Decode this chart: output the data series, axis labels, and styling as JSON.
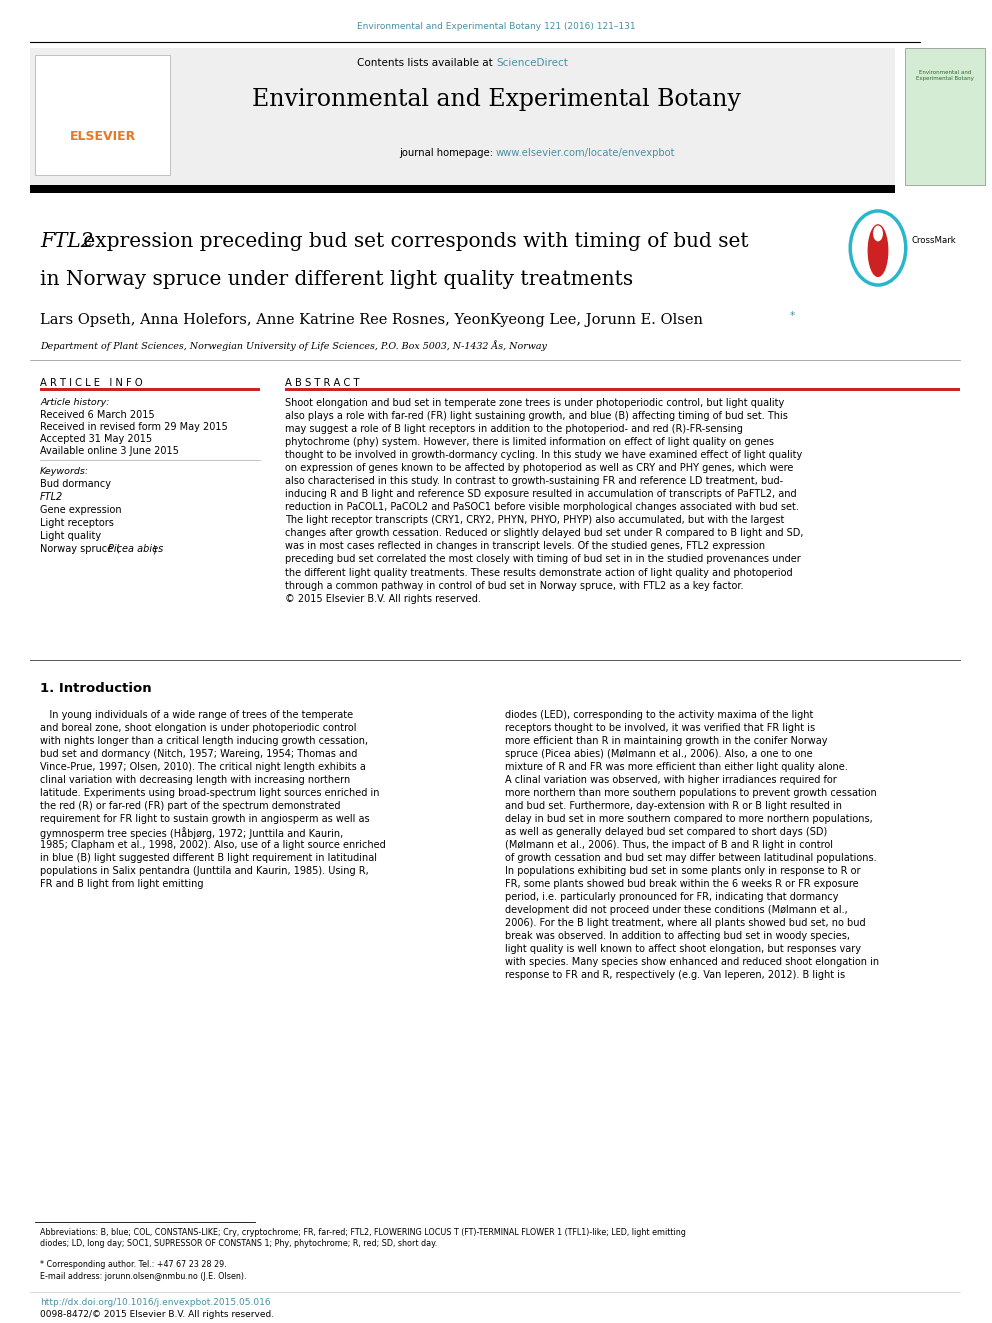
{
  "page_width": 9.92,
  "page_height": 13.23,
  "background_color": "#ffffff",
  "journal_ref_color": "#4a90a4",
  "journal_ref": "Environmental and Experimental Botany 121 (2016) 121–131",
  "header_bg_color": "#efefef",
  "contents_text": "Contents lists available at ",
  "sciencedirect_text": "ScienceDirect",
  "sciencedirect_color": "#4a90a4",
  "journal_title": "Environmental and Experimental Botany",
  "journal_homepage_label": "journal homepage: ",
  "journal_url": "www.elsevier.com/locate/envexpbot",
  "journal_url_color": "#4a90a4",
  "article_title_italic": "FTL2",
  "article_title_rest": " expression preceding bud set corresponds with timing of bud set",
  "article_title_line2": "in Norway spruce under different light quality treatments",
  "authors": "Lars Opseth, Anna Holefors, Anne Katrine Ree Rosnes, YeonKyeong Lee, Jorunn E. Olsen",
  "author_star_color": "#4a90a4",
  "affiliation": "Department of Plant Sciences, Norwegian University of Life Sciences, P.O. Box 5003, N-1432 Ås, Norway",
  "article_info_header": "A R T I C L E   I N F O",
  "abstract_header": "A B S T R A C T",
  "article_history_label": "Article history:",
  "received": "Received 6 March 2015",
  "received_revised": "Received in revised form 29 May 2015",
  "accepted": "Accepted 31 May 2015",
  "available": "Available online 3 June 2015",
  "keywords_label": "Keywords:",
  "keywords": [
    "Bud dormancy",
    "FTL2",
    "Gene expression",
    "Light receptors",
    "Light quality",
    "Norway spruce (Picea abies)"
  ],
  "abstract_text": "Shoot elongation and bud set in temperate zone trees is under photoperiodic control, but light quality\nalso plays a role with far-red (FR) light sustaining growth, and blue (B) affecting timing of bud set. This\nmay suggest a role of B light receptors in addition to the photoperiod- and red (R)-FR-sensing\nphytochrome (phy) system. However, there is limited information on effect of light quality on genes\nthought to be involved in growth-dormancy cycling. In this study we have examined effect of light quality\non expression of genes known to be affected by photoperiod as well as CRY and PHY genes, which were\nalso characterised in this study. In contrast to growth-sustaining FR and reference LD treatment, bud-\ninducing R and B light and reference SD exposure resulted in accumulation of transcripts of PaFTL2, and\nreduction in PaCOL1, PaCOL2 and PaSOC1 before visible morphological changes associated with bud set.\nThe light receptor transcripts (CRY1, CRY2, PHYN, PHYO, PHYP) also accumulated, but with the largest\nchanges after growth cessation. Reduced or slightly delayed bud set under R compared to B light and SD,\nwas in most cases reflected in changes in transcript levels. Of the studied genes, FTL2 expression\npreceding bud set correlated the most closely with timing of bud set in in the studied provenances under\nthe different light quality treatments. These results demonstrate action of light quality and photoperiod\nthrough a common pathway in control of bud set in Norway spruce, with FTL2 as a key factor.\n© 2015 Elsevier B.V. All rights reserved.",
  "intro_header": "1. Introduction",
  "intro_col1_lines": [
    "   In young individuals of a wide range of trees of the temperate",
    "and boreal zone, shoot elongation is under photoperiodic control",
    "with nights longer than a critical length inducing growth cessation,",
    "bud set and dormancy (Nitch, 1957; Wareing, 1954; Thomas and",
    "Vince-Prue, 1997; Olsen, 2010). The critical night length exhibits a",
    "clinal variation with decreasing length with increasing northern",
    "latitude. Experiments using broad-spectrum light sources enriched in",
    "the red (R) or far-red (FR) part of the spectrum demonstrated",
    "requirement for FR light to sustain growth in angiosperm as well as",
    "gymnosperm tree species (Håbjørg, 1972; Junttila and Kaurin,",
    "1985; Clapham et al., 1998, 2002). Also, use of a light source enriched",
    "in blue (B) light suggested different B light requirement in latitudinal",
    "populations in Salix pentandra (Junttila and Kaurin, 1985). Using R,",
    "FR and B light from light emitting"
  ],
  "intro_col2_lines": [
    "diodes (LED), corresponding to the activity maxima of the light",
    "receptors thought to be involved, it was verified that FR light is",
    "more efficient than R in maintaining growth in the conifer Norway",
    "spruce (Picea abies) (Mølmann et al., 2006). Also, a one to one",
    "mixture of R and FR was more efficient than either light quality alone.",
    "A clinal variation was observed, with higher irradiances required for",
    "more northern than more southern populations to prevent growth cessation",
    "and bud set. Furthermore, day-extension with R or B light resulted in",
    "delay in bud set in more southern compared to more northern populations,",
    "as well as generally delayed bud set compared to short days (SD)",
    "(Mølmann et al., 2006). Thus, the impact of B and R light in control",
    "of growth cessation and bud set may differ between latitudinal populations.",
    "In populations exhibiting bud set in some plants only in response to R or",
    "FR, some plants showed bud break within the 6 weeks R or FR exposure",
    "period, i.e. particularly pronounced for FR, indicating that dormancy",
    "development did not proceed under these conditions (Mølmann et al.,",
    "2006). For the B light treatment, where all plants showed bud set, no bud",
    "break was observed. In addition to affecting bud set in woody species,",
    "light quality is well known to affect shoot elongation, but responses vary",
    "with species. Many species show enhanced and reduced shoot elongation in",
    "response to FR and R, respectively (e.g. Van Ieperen, 2012). B light is"
  ],
  "footnote_abbrev": "Abbreviations: B, blue; COL, CONSTANS-LIKE; Cry, cryptochrome; FR, far-red; FTL2, FLOWERING LOCUS T (FT)-TERMINAL FLOWER 1 (TFL1)-like; LED, light emitting\ndiodes; LD, long day; SOC1, SUPRESSOR OF CONSTANS 1; Phy, phytochrome; R, red; SD, short day.",
  "footnote_star": "* Corresponding author. Tel.: +47 67 23 28 29.",
  "footnote_email": "E-mail address: jorunn.olsen@nmbu.no (J.E. Olsen).",
  "footer_doi": "http://dx.doi.org/10.1016/j.envexpbot.2015.05.016",
  "footer_doi_color": "#4a90a4",
  "footer_issn": "0098-8472/© 2015 Elsevier B.V. All rights reserved.",
  "elsevier_orange": "#e87722",
  "link_color": "#4a90a4",
  "light_gray": "#cccccc",
  "red_rule": "#cc2222"
}
